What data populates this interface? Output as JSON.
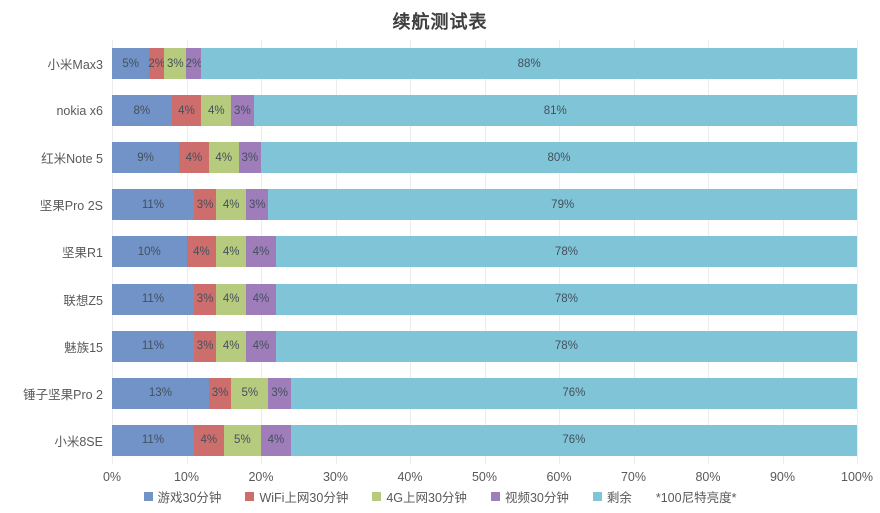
{
  "title": "续航测试表",
  "note": "*100尼特亮度*",
  "chart_data": {
    "type": "bar",
    "stacked": true,
    "orientation": "horizontal",
    "title": "续航测试表",
    "categories": [
      "小米Max3",
      "nokia x6",
      "红米Note 5",
      "坚果Pro 2S",
      "坚果R1",
      "联想Z5",
      "魅族15",
      "锤子坚果Pro 2",
      "小米8SE"
    ],
    "series": [
      {
        "name": "游戏30分钟",
        "color": "#7193c7",
        "values": [
          5,
          8,
          9,
          11,
          10,
          11,
          11,
          13,
          11
        ]
      },
      {
        "name": "WiFi上网30分钟",
        "color": "#cd6e6c",
        "values": [
          2,
          4,
          4,
          3,
          4,
          3,
          3,
          3,
          4
        ]
      },
      {
        "name": "4G上网30分钟",
        "color": "#b6cb7e",
        "values": [
          3,
          4,
          4,
          4,
          4,
          4,
          4,
          5,
          5
        ]
      },
      {
        "name": "视频30分钟",
        "color": "#9e7dba",
        "values": [
          2,
          3,
          3,
          3,
          4,
          4,
          4,
          3,
          4
        ]
      },
      {
        "name": "剩余",
        "color": "#80c4d7",
        "values": [
          88,
          81,
          80,
          79,
          78,
          78,
          78,
          76,
          76
        ]
      }
    ],
    "x_ticks": [
      "0%",
      "10%",
      "20%",
      "30%",
      "40%",
      "50%",
      "60%",
      "70%",
      "80%",
      "90%",
      "100%"
    ],
    "xlim": [
      0,
      100
    ],
    "grid": true,
    "legend_position": "bottom",
    "legend_note": "*100尼特亮度*",
    "data_label_suffix": "%"
  }
}
